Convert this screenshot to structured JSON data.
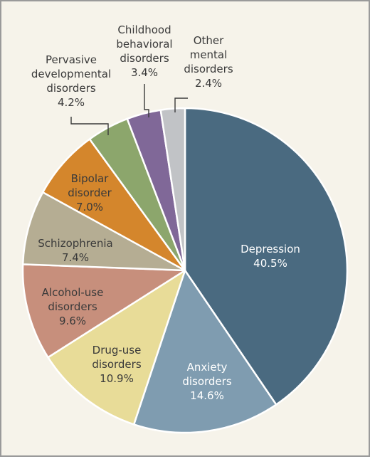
{
  "chart_data": {
    "type": "pie",
    "title": "",
    "start": "12 o'clock",
    "direction": "clockwise",
    "slices": [
      {
        "label": [
          "Depression"
        ],
        "pct_text": "40.5%",
        "value": 40.5,
        "color": "#4a6a80",
        "text_color": "#ffffff"
      },
      {
        "label": [
          "Anxiety",
          "disorders"
        ],
        "pct_text": "14.6%",
        "value": 14.6,
        "color": "#7f9cb0",
        "text_color": "#ffffff"
      },
      {
        "label": [
          "Drug-use",
          "disorders"
        ],
        "pct_text": "10.9%",
        "value": 10.9,
        "color": "#e8dc98",
        "text_color": "#3a3a3a"
      },
      {
        "label": [
          "Alcohol-use",
          "disorders"
        ],
        "pct_text": "9.6%",
        "value": 9.6,
        "color": "#c78f7c",
        "text_color": "#3a3a3a"
      },
      {
        "label": [
          "Schizophrenia"
        ],
        "pct_text": "7.4%",
        "value": 7.4,
        "color": "#b5ad93",
        "text_color": "#3a3a3a"
      },
      {
        "label": [
          "Bipolar",
          "disorder"
        ],
        "pct_text": "7.0%",
        "value": 7.0,
        "color": "#d4862c",
        "text_color": "#3a3a3a"
      },
      {
        "label": [
          "Pervasive",
          "developmental",
          "disorders"
        ],
        "pct_text": "4.2%",
        "value": 4.2,
        "color": "#8ca66c",
        "text_color": "#3a3a3a"
      },
      {
        "label": [
          "Childhood",
          "behavioral",
          "disorders"
        ],
        "pct_text": "3.4%",
        "value": 3.4,
        "color": "#806898",
        "text_color": "#3a3a3a"
      },
      {
        "label": [
          "Other",
          "mental",
          "disorders"
        ],
        "pct_text": "2.4%",
        "value": 2.4,
        "color": "#c1c3c6",
        "text_color": "#3a3a3a"
      }
    ]
  }
}
